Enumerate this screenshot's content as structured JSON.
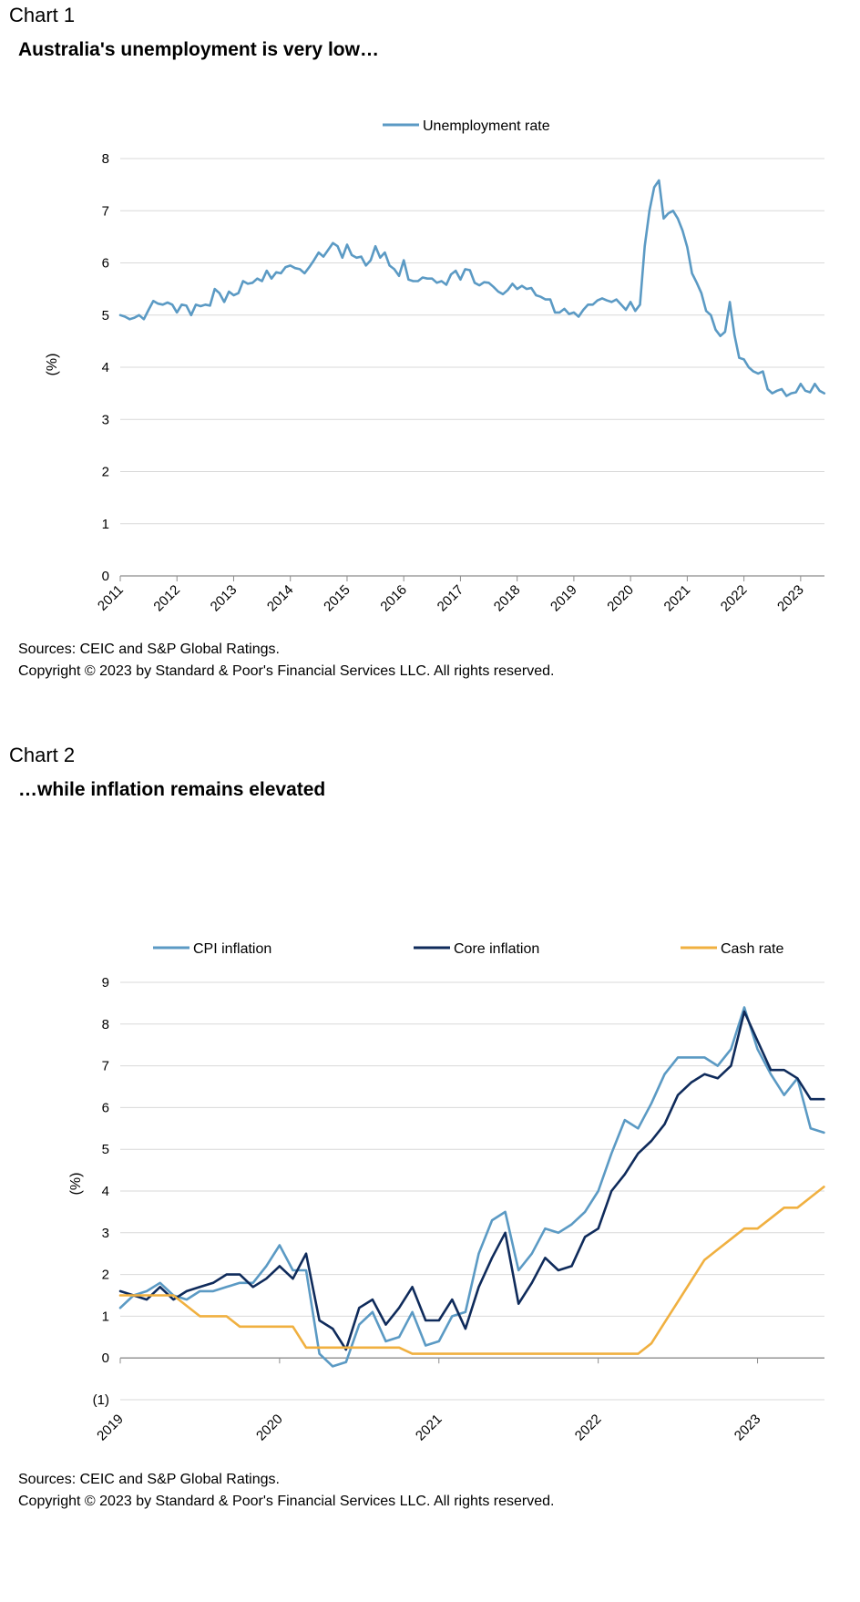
{
  "charts": [
    {
      "label": "Chart 1",
      "title": "Australia's unemployment is very low…",
      "source_line1": "Sources: CEIC and S&P Global Ratings.",
      "source_line2": "Copyright © 2023 by Standard & Poor's Financial Services LLC. All rights reserved."
    },
    {
      "label": "Chart 2",
      "title": "…while inflation remains elevated",
      "source_line1": "Sources: CEIC and S&P Global Ratings.",
      "source_line2": "Copyright © 2023 by Standard & Poor's Financial Services LLC. All rights reserved."
    }
  ],
  "chart_data": [
    {
      "type": "line",
      "title": "Australia's unemployment is very low…",
      "xlabel": "",
      "ylabel": "(%)",
      "ylim": [
        0,
        8
      ],
      "yticks": [
        "0",
        "1",
        "2",
        "3",
        "4",
        "5",
        "6",
        "7",
        "8"
      ],
      "xlim": [
        2011,
        2023.42
      ],
      "xticks": [
        "2011",
        "2012",
        "2013",
        "2014",
        "2015",
        "2016",
        "2017",
        "2018",
        "2019",
        "2020",
        "2021",
        "2022",
        "2023"
      ],
      "grid": true,
      "legend": "top-center",
      "series": [
        {
          "name": "Unemployment rate",
          "color": "#5b9ac4",
          "start": 2011,
          "step_months": 1,
          "values": [
            5.0,
            4.97,
            4.92,
            4.95,
            5.0,
            4.92,
            5.1,
            5.27,
            5.22,
            5.2,
            5.24,
            5.2,
            5.05,
            5.2,
            5.18,
            5.0,
            5.2,
            5.17,
            5.2,
            5.18,
            5.5,
            5.42,
            5.25,
            5.45,
            5.38,
            5.42,
            5.65,
            5.6,
            5.62,
            5.7,
            5.65,
            5.85,
            5.7,
            5.82,
            5.8,
            5.92,
            5.95,
            5.9,
            5.88,
            5.8,
            5.92,
            6.05,
            6.2,
            6.12,
            6.25,
            6.38,
            6.32,
            6.1,
            6.35,
            6.15,
            6.1,
            6.12,
            5.95,
            6.05,
            6.32,
            6.1,
            6.2,
            5.95,
            5.88,
            5.75,
            6.05,
            5.68,
            5.65,
            5.65,
            5.72,
            5.7,
            5.7,
            5.62,
            5.65,
            5.58,
            5.78,
            5.85,
            5.68,
            5.88,
            5.86,
            5.62,
            5.57,
            5.63,
            5.62,
            5.54,
            5.45,
            5.4,
            5.48,
            5.6,
            5.5,
            5.56,
            5.5,
            5.52,
            5.38,
            5.35,
            5.3,
            5.3,
            5.05,
            5.05,
            5.12,
            5.02,
            5.05,
            4.97,
            5.1,
            5.2,
            5.2,
            5.28,
            5.32,
            5.28,
            5.25,
            5.3,
            5.2,
            5.1,
            5.25,
            5.08,
            5.2,
            6.32,
            7.0,
            7.45,
            7.58,
            6.85,
            6.95,
            7.0,
            6.85,
            6.62,
            6.3,
            5.8,
            5.62,
            5.42,
            5.08,
            5.0,
            4.72,
            4.6,
            4.68,
            5.25,
            4.62,
            4.18,
            4.15,
            4.0,
            3.92,
            3.88,
            3.92,
            3.58,
            3.5,
            3.55,
            3.58,
            3.45,
            3.5,
            3.52,
            3.68,
            3.55,
            3.52,
            3.68,
            3.55,
            3.5
          ]
        }
      ]
    },
    {
      "type": "line",
      "title": "…while inflation remains elevated",
      "xlabel": "",
      "ylabel": "(%)",
      "ylim": [
        -1,
        9
      ],
      "yticks": [
        "(1)",
        "0",
        "1",
        "2",
        "3",
        "4",
        "5",
        "6",
        "7",
        "8",
        "9"
      ],
      "xlim": [
        2019,
        2023.42
      ],
      "xticks": [
        "2019",
        "2020",
        "2021",
        "2022",
        "2023"
      ],
      "grid": true,
      "legend": "top",
      "series": [
        {
          "name": "CPI inflation",
          "color": "#5b9ac4",
          "start": 2019,
          "step_months": 1,
          "values": [
            1.2,
            1.5,
            1.6,
            1.8,
            1.5,
            1.4,
            1.6,
            1.6,
            1.7,
            1.8,
            1.8,
            2.2,
            2.7,
            2.1,
            2.1,
            0.1,
            -0.2,
            -0.1,
            0.8,
            1.1,
            0.4,
            0.5,
            1.1,
            0.3,
            0.4,
            1.0,
            1.1,
            2.5,
            3.3,
            3.5,
            2.1,
            2.5,
            3.1,
            3.0,
            3.2,
            3.5,
            4.0,
            4.9,
            5.7,
            5.5,
            6.1,
            6.8,
            7.2,
            7.2,
            7.2,
            7.0,
            7.4,
            8.4,
            7.4,
            6.8,
            6.3,
            6.7,
            5.5,
            5.4
          ]
        },
        {
          "name": "Core inflation",
          "color": "#0f2b5b",
          "start": 2019,
          "step_months": 1,
          "values": [
            1.6,
            1.5,
            1.4,
            1.7,
            1.4,
            1.6,
            1.7,
            1.8,
            2.0,
            2.0,
            1.7,
            1.9,
            2.2,
            1.9,
            2.5,
            0.9,
            0.7,
            0.2,
            1.2,
            1.4,
            0.8,
            1.2,
            1.7,
            0.9,
            0.9,
            1.4,
            0.7,
            1.7,
            2.4,
            3.0,
            1.3,
            1.8,
            2.4,
            2.1,
            2.2,
            2.9,
            3.1,
            4.0,
            4.4,
            4.9,
            5.2,
            5.6,
            6.3,
            6.6,
            6.8,
            6.7,
            7.0,
            8.3,
            7.6,
            6.9,
            6.9,
            6.7,
            6.2,
            6.2
          ]
        },
        {
          "name": "Cash rate",
          "color": "#f0b040",
          "start": 2019,
          "step_months": 1,
          "values": [
            1.5,
            1.5,
            1.5,
            1.5,
            1.5,
            1.25,
            1.0,
            1.0,
            1.0,
            0.75,
            0.75,
            0.75,
            0.75,
            0.75,
            0.25,
            0.25,
            0.25,
            0.25,
            0.25,
            0.25,
            0.25,
            0.25,
            0.1,
            0.1,
            0.1,
            0.1,
            0.1,
            0.1,
            0.1,
            0.1,
            0.1,
            0.1,
            0.1,
            0.1,
            0.1,
            0.1,
            0.1,
            0.1,
            0.1,
            0.1,
            0.35,
            0.85,
            1.35,
            1.85,
            2.35,
            2.6,
            2.85,
            3.1,
            3.1,
            3.35,
            3.6,
            3.6,
            3.85,
            4.1
          ]
        }
      ]
    }
  ]
}
